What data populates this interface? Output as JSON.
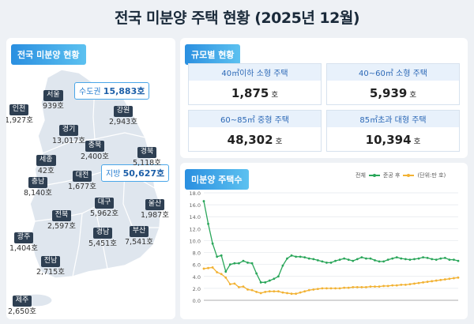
{
  "title": "전국 미분양 주택 현황 (2025년 12월)",
  "map_panel": {
    "tag": "전국 미분양 현황",
    "capital": {
      "label": "수도권",
      "value": "15,883호"
    },
    "provincial": {
      "label": "지방",
      "value": "50,627호"
    },
    "regions": [
      {
        "name": "인천",
        "value": "1,927호"
      },
      {
        "name": "서울",
        "value": "939호"
      },
      {
        "name": "강원",
        "value": "2,943호"
      },
      {
        "name": "경기",
        "value": "13,017호"
      },
      {
        "name": "충북",
        "value": "2,400호"
      },
      {
        "name": "경북",
        "value": "5,118호"
      },
      {
        "name": "세종",
        "value": "42호"
      },
      {
        "name": "충남",
        "value": "8,140호"
      },
      {
        "name": "대전",
        "value": "1,677호"
      },
      {
        "name": "대구",
        "value": "5,962호"
      },
      {
        "name": "울산",
        "value": "1,987호"
      },
      {
        "name": "전북",
        "value": "2,597호"
      },
      {
        "name": "경남",
        "value": "5,451호"
      },
      {
        "name": "부산",
        "value": "7,541호"
      },
      {
        "name": "광주",
        "value": "1,404호"
      },
      {
        "name": "전남",
        "value": "2,715호"
      },
      {
        "name": "제주",
        "value": "2,650호"
      }
    ]
  },
  "size_panel": {
    "tag": "규모별 현황",
    "cells": [
      {
        "label": "40㎡이하 소형 주택",
        "value": "1,875",
        "unit": "호"
      },
      {
        "label": "40~60㎡ 소형 주택",
        "value": "5,939",
        "unit": "호"
      },
      {
        "label": "60~85㎡ 중형 주택",
        "value": "48,302",
        "unit": "호"
      },
      {
        "label": "85㎡초과 대형 주택",
        "value": "10,394",
        "unit": "호"
      }
    ]
  },
  "chart_panel": {
    "tag": "미분양 주택수",
    "legend": {
      "total": "전체",
      "completed": "준공 후",
      "unit": "(단위:만 호)"
    }
  },
  "colors": {
    "total": "#2aa65a",
    "completed": "#f2b233",
    "accent": "#2a8fe0"
  },
  "chart_data": {
    "type": "line",
    "ylim": [
      0,
      18
    ],
    "yticks": [
      "0.0",
      "2.0",
      "4.0",
      "6.0",
      "8.0",
      "10.0",
      "12.0",
      "14.0",
      "16.0",
      "18.0"
    ],
    "grid": true,
    "legend_position": "top-right",
    "series": [
      {
        "name": "전체",
        "values": [
          16.6,
          12.8,
          9.5,
          7.3,
          7.5,
          4.8,
          6.0,
          6.2,
          6.2,
          6.6,
          6.3,
          6.2,
          4.5,
          3.0,
          3.0,
          3.3,
          3.6,
          4.0,
          5.8,
          7.0,
          7.5,
          7.3,
          7.3,
          7.2,
          7.0,
          6.9,
          6.7,
          6.5,
          6.3,
          6.3,
          6.6,
          6.8,
          7.0,
          6.8,
          6.6,
          6.9,
          7.2,
          7.0,
          7.0,
          6.7,
          6.5,
          6.5,
          6.8,
          7.0,
          7.2,
          7.0,
          6.9,
          6.8,
          6.9,
          7.0,
          7.2,
          7.1,
          6.9,
          6.8,
          7.0,
          7.1,
          6.8,
          6.8,
          6.6
        ]
      },
      {
        "name": "준공 후",
        "values": [
          5.3,
          5.4,
          5.5,
          4.7,
          4.4,
          3.8,
          2.7,
          2.8,
          2.2,
          2.3,
          1.8,
          1.7,
          1.4,
          1.2,
          1.4,
          1.5,
          1.5,
          1.5,
          1.3,
          1.2,
          1.1,
          1.1,
          1.3,
          1.5,
          1.7,
          1.8,
          1.9,
          2.0,
          2.0,
          2.0,
          2.0,
          2.0,
          2.1,
          2.1,
          2.2,
          2.2,
          2.2,
          2.2,
          2.3,
          2.3,
          2.3,
          2.4,
          2.4,
          2.5,
          2.5,
          2.6,
          2.6,
          2.7,
          2.8,
          2.9,
          3.0,
          3.1,
          3.2,
          3.3,
          3.4,
          3.5,
          3.6,
          3.7,
          3.8
        ]
      }
    ]
  }
}
